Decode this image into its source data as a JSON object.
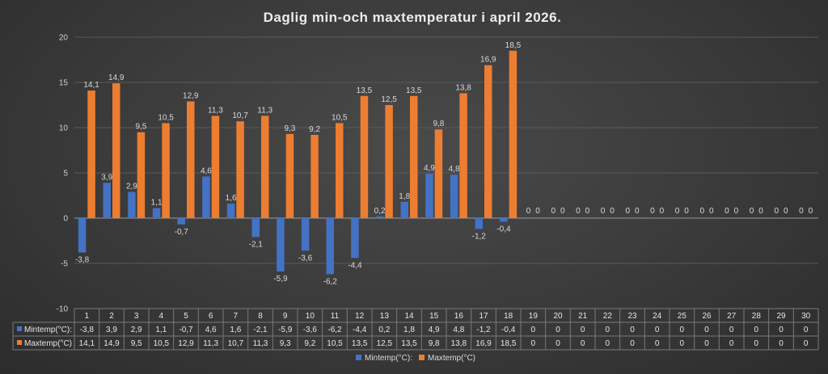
{
  "chart_data": {
    "type": "bar",
    "title": "Daglig min-och maxtemperatur i april 2026.",
    "xlabel": "",
    "ylabel": "",
    "ylim": [
      -10,
      20
    ],
    "yticks": [
      -10,
      -5,
      0,
      5,
      10,
      15,
      20
    ],
    "grid": true,
    "legend": "bottom",
    "categories": [
      "1",
      "2",
      "3",
      "4",
      "5",
      "6",
      "7",
      "8",
      "9",
      "10",
      "11",
      "12",
      "13",
      "14",
      "15",
      "16",
      "17",
      "18",
      "19",
      "20",
      "21",
      "22",
      "23",
      "24",
      "25",
      "26",
      "27",
      "28",
      "29",
      "30"
    ],
    "series": [
      {
        "name": "Mintemp(°C):",
        "table_label": "Mintemp(°C):",
        "color": "#4472c4",
        "values": [
          -3.8,
          3.9,
          2.9,
          1.1,
          -0.7,
          4.6,
          1.6,
          -2.1,
          -5.9,
          -3.6,
          -6.2,
          -4.4,
          0.2,
          1.8,
          4.9,
          4.8,
          -1.2,
          -0.4,
          0,
          0,
          0,
          0,
          0,
          0,
          0,
          0,
          0,
          0,
          0,
          0
        ],
        "labels": [
          "-3,8",
          "3,9",
          "2,9",
          "1,1",
          "-0,7",
          "4,6",
          "1,6",
          "-2,1",
          "-5,9",
          "-3,6",
          "-6,2",
          "-4,4",
          "0,2",
          "1,8",
          "4,9",
          "4,8",
          "-1,2",
          "-0,4",
          "0",
          "0",
          "0",
          "0",
          "0",
          "0",
          "0",
          "0",
          "0",
          "0",
          "0",
          "0"
        ]
      },
      {
        "name": "Maxtemp(°C)",
        "table_label": "Maxtemp(°C)",
        "color": "#ed7d31",
        "values": [
          14.1,
          14.9,
          9.5,
          10.5,
          12.9,
          11.3,
          10.7,
          11.3,
          9.3,
          9.2,
          10.5,
          13.5,
          12.5,
          13.5,
          9.8,
          13.8,
          16.9,
          18.5,
          0,
          0,
          0,
          0,
          0,
          0,
          0,
          0,
          0,
          0,
          0,
          0
        ],
        "labels": [
          "14,1",
          "14,9",
          "9,5",
          "10,5",
          "12,9",
          "11,3",
          "10,7",
          "11,3",
          "9,3",
          "9,2",
          "10,5",
          "13,5",
          "12,5",
          "13,5",
          "9,8",
          "13,8",
          "16,9",
          "18,5",
          "0",
          "0",
          "0",
          "0",
          "0",
          "0",
          "0",
          "0",
          "0",
          "0",
          "0",
          "0"
        ]
      }
    ],
    "tick_labels": [
      "-10",
      "-5",
      "0",
      "5",
      "10",
      "15",
      "20"
    ]
  }
}
